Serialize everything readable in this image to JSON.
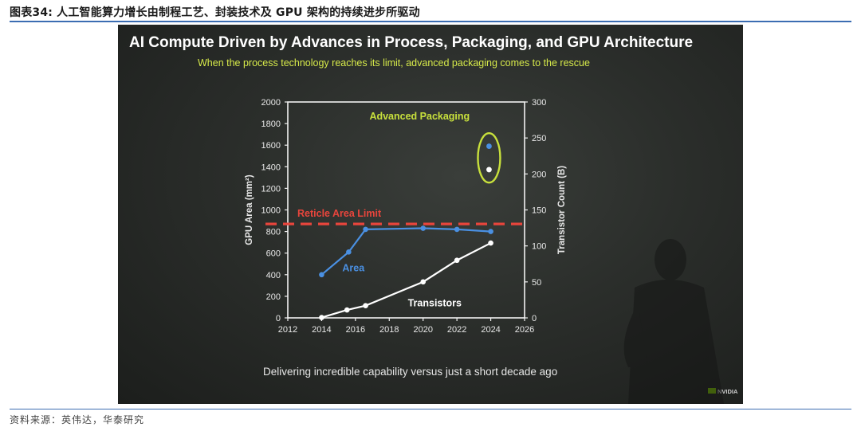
{
  "figure_caption": "图表34:  人工智能算力增长由制程工艺、封装技术及 GPU 架构的持续进步所驱动",
  "source_note": "资料来源：英伟达，华泰研究",
  "slide": {
    "title": "AI Compute Driven by Advances in Process, Packaging, and GPU Architecture",
    "subtitle": "When the process technology reaches its limit, advanced packaging comes to the rescue",
    "footer": "Delivering incredible capability versus just a short decade ago",
    "brand": "NVIDIA"
  },
  "chart_data": {
    "type": "line",
    "xlim": [
      2012,
      2026
    ],
    "x_ticks": [
      "2012",
      "2014",
      "2016",
      "2018",
      "2020",
      "2022",
      "2024",
      "2026"
    ],
    "y_left": {
      "label": "GPU Area (mm²)",
      "lim": [
        0,
        2000
      ],
      "ticks": [
        "0",
        "200",
        "400",
        "600",
        "800",
        "1000",
        "1200",
        "1400",
        "1600",
        "1800",
        "2000"
      ]
    },
    "y_right": {
      "label": "Transistor Count (B)",
      "lim": [
        0,
        300
      ],
      "ticks": [
        "0",
        "50",
        "100",
        "150",
        "200",
        "250",
        "300"
      ]
    },
    "series": [
      {
        "name": "Area",
        "axis": "left",
        "color": "#4a90e2",
        "points": [
          [
            2014,
            400
          ],
          [
            2015.6,
            610
          ],
          [
            2016.6,
            820
          ],
          [
            2020,
            830
          ],
          [
            2022,
            820
          ],
          [
            2024,
            800
          ]
        ]
      },
      {
        "name": "Transistors",
        "axis": "right",
        "color": "#ffffff",
        "points": [
          [
            2014,
            0.5
          ],
          [
            2015.5,
            11
          ],
          [
            2016.6,
            17
          ],
          [
            2020,
            50
          ],
          [
            2022,
            80
          ],
          [
            2024,
            104
          ]
        ]
      }
    ],
    "reference_line": {
      "label": "Reticle Area Limit",
      "value": 870,
      "axis": "left",
      "color": "#e8453c"
    },
    "annotation": {
      "label": "Advanced Packaging",
      "color": "#c8e03c",
      "points": [
        {
          "x": 2023.9,
          "y": 1590,
          "axis": "left",
          "color": "#4a90e2"
        },
        {
          "x": 2023.9,
          "y": 206,
          "axis": "right",
          "color": "#ffffff"
        }
      ]
    },
    "grid": false,
    "legend": "none"
  }
}
